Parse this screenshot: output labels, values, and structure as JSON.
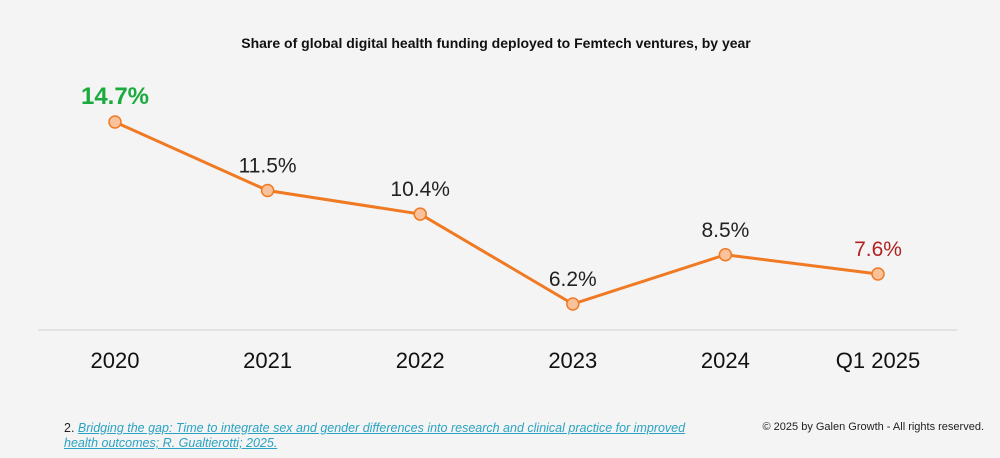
{
  "chart_data": {
    "type": "line",
    "title": "Share of global digital health funding deployed to Femtech ventures, by year",
    "categories": [
      "2020",
      "2021",
      "2022",
      "2023",
      "2024",
      "Q1 2025"
    ],
    "values": [
      14.7,
      11.5,
      10.4,
      6.2,
      8.5,
      7.6
    ],
    "data_labels": [
      "14.7%",
      "11.5%",
      "10.4%",
      "6.2%",
      "8.5%",
      "7.6%"
    ],
    "label_colors": [
      "#1aab3e",
      "#222222",
      "#222222",
      "#222222",
      "#222222",
      "#b22222"
    ],
    "line_color": "#f07a23",
    "marker_fill": "#f9c29a",
    "xlabel": "",
    "ylabel": "",
    "grid": false,
    "legend": "none"
  },
  "footnote": {
    "number": "2.",
    "link_text": "Bridging the gap: Time to integrate sex and gender differences into research and clinical practice for improved health outcomes; R. Gualtierotti; 2025."
  },
  "copyright": "© 2025 by Galen Growth  - All rights reserved."
}
